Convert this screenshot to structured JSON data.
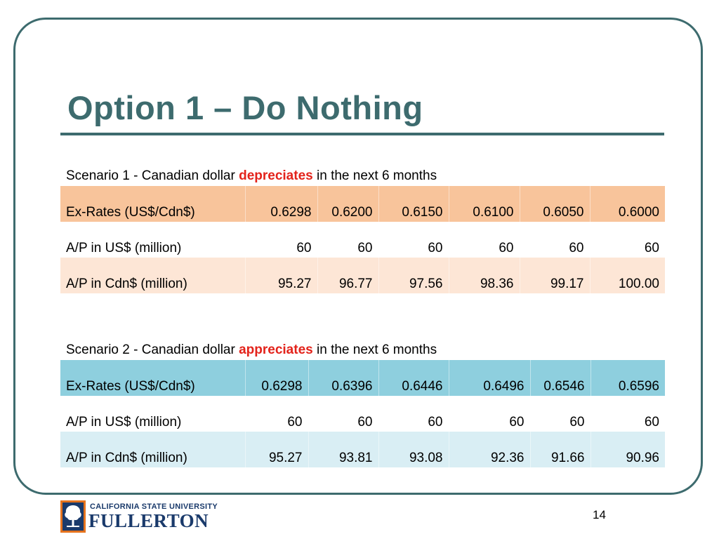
{
  "slide": {
    "title": "Option 1 – Do Nothing",
    "page_number": "14"
  },
  "scenarios": [
    {
      "caption_prefix": "Scenario 1 - Canadian dollar ",
      "caption_highlight": "depreciates",
      "caption_suffix": " in the next 6 months",
      "rows": [
        {
          "label": "Ex-Rates (US$/Cdn$)",
          "values": [
            "0.6298",
            "0.6200",
            "0.6150",
            "0.6100",
            "0.6050",
            "0.6000"
          ]
        },
        {
          "label": "A/P in US$ (million)",
          "values": [
            "60",
            "60",
            "60",
            "60",
            "60",
            "60"
          ]
        },
        {
          "label": "A/P in Cdn$ (million)",
          "values": [
            "95.27",
            "96.77",
            "97.56",
            "98.36",
            "99.17",
            "100.00"
          ]
        }
      ]
    },
    {
      "caption_prefix": "Scenario 2 - Canadian dollar ",
      "caption_highlight": "appreciates",
      "caption_suffix": " in the next 6 months",
      "rows": [
        {
          "label": "Ex-Rates (US$/Cdn$)",
          "values": [
            "0.6298",
            "0.6396",
            "0.6446",
            "0.6496",
            "0.6546",
            "0.6596"
          ]
        },
        {
          "label": "A/P in US$ (million)",
          "values": [
            "60",
            "60",
            "60",
            "60",
            "60",
            "60"
          ]
        },
        {
          "label": "A/P in Cdn$ (million)",
          "values": [
            "95.27",
            "93.81",
            "93.08",
            "92.36",
            "91.66",
            "90.96"
          ]
        }
      ]
    }
  ],
  "logo": {
    "line1": "CALIFORNIA STATE UNIVERSITY",
    "line2": "FULLERTON"
  },
  "colors": {
    "theme": "#3d6b6e",
    "highlight": "#e3231b",
    "scenario1_header": "#f8c49b",
    "scenario1_alt": "#fde6d6",
    "scenario2_header": "#8ecfde",
    "scenario2_alt": "#d9eef4"
  }
}
